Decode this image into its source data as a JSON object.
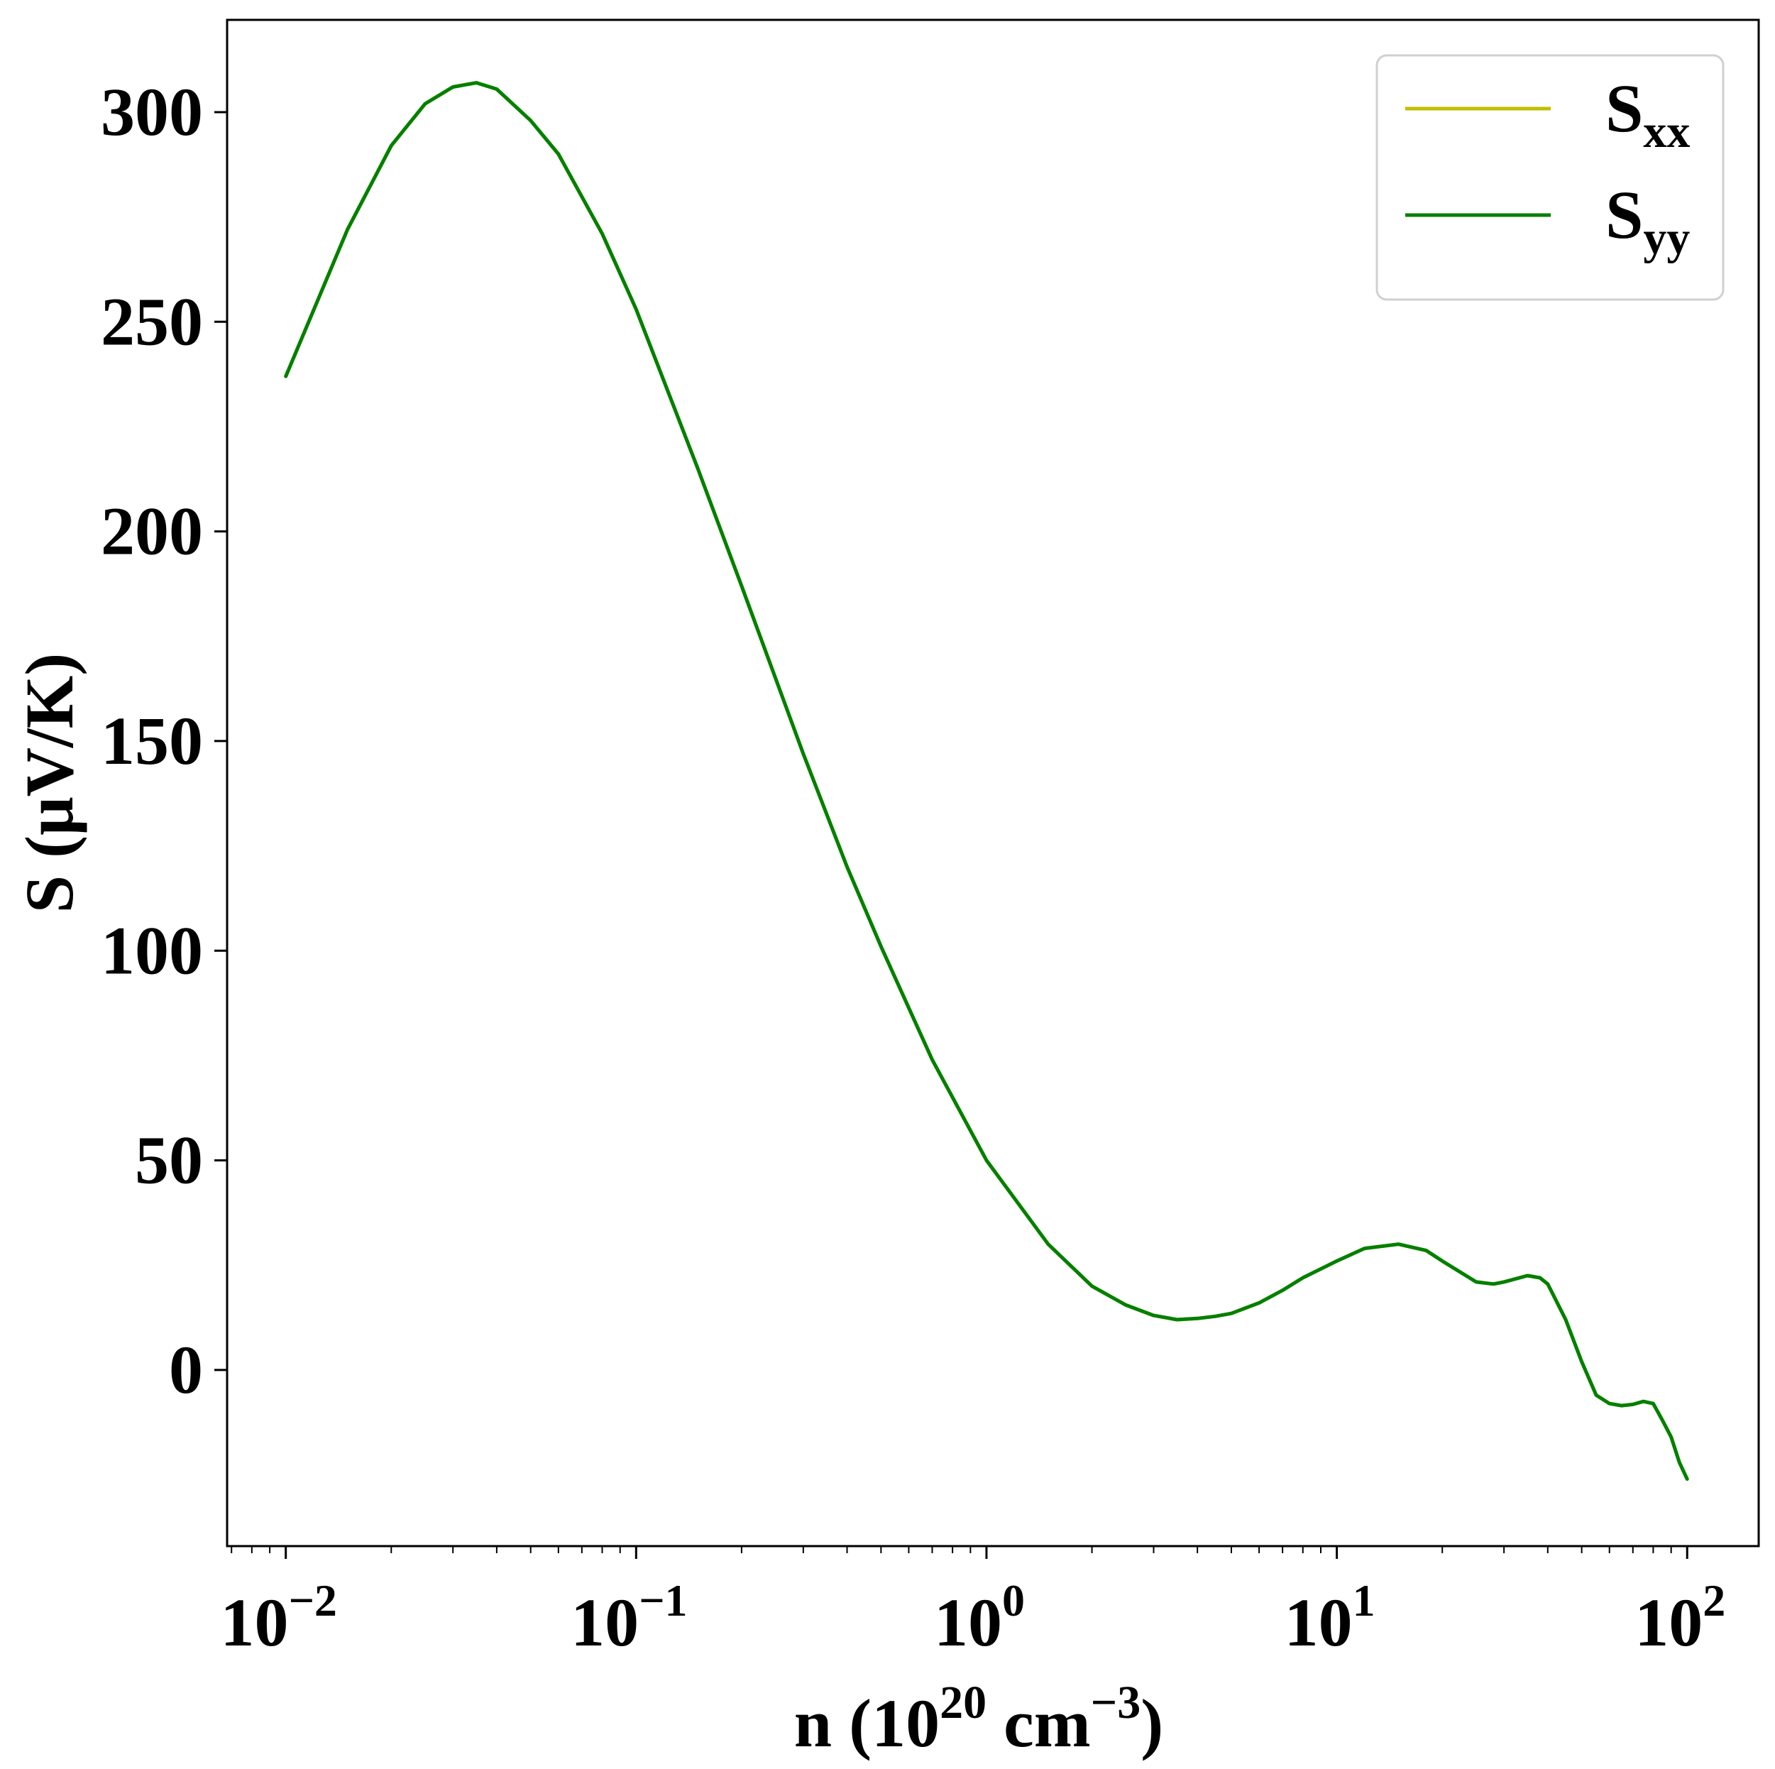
{
  "chart_data": {
    "type": "line",
    "x_scale": "log",
    "xlim": [
      0.0068,
      160
    ],
    "ylim": [
      -42,
      322
    ],
    "grid": false,
    "legend_position": "top-right",
    "xlabel": {
      "base": "n (10",
      "sup1": "20",
      "mid": " cm",
      "sup2": "−3",
      "end": ")"
    },
    "ylabel": "S (μV/K)",
    "x_ticks": [
      {
        "value": 0.01,
        "base": "10",
        "exp": "−2"
      },
      {
        "value": 0.1,
        "base": "10",
        "exp": "−1"
      },
      {
        "value": 1,
        "base": "10",
        "exp": "0"
      },
      {
        "value": 10,
        "base": "10",
        "exp": "1"
      },
      {
        "value": 100,
        "base": "10",
        "exp": "2"
      }
    ],
    "y_ticks": [
      0,
      50,
      100,
      150,
      200,
      250,
      300
    ],
    "y_tick_labels": [
      "0",
      "50",
      "100",
      "150",
      "200",
      "250",
      "300"
    ],
    "series": [
      {
        "name": "S",
        "name_sub": "xx",
        "color": "#bfbf00",
        "x": [
          0.01,
          0.015,
          0.02,
          0.025,
          0.03,
          0.035,
          0.04,
          0.05,
          0.06,
          0.08,
          0.1,
          0.15,
          0.2,
          0.3,
          0.4,
          0.5,
          0.7,
          1.0,
          1.5,
          2.0,
          2.5,
          3.0,
          3.5,
          4.0,
          4.5,
          5,
          6,
          7,
          8,
          10,
          12,
          15,
          18,
          20,
          25,
          28,
          30,
          35,
          38,
          40,
          45,
          50,
          55,
          60,
          65,
          70,
          75,
          80,
          85,
          90,
          95,
          100
        ],
        "y": [
          237,
          272,
          292,
          302,
          306,
          307,
          305.5,
          298,
          290,
          271,
          253,
          215,
          187,
          147,
          120,
          101,
          74,
          50,
          30,
          20,
          15.5,
          13,
          12,
          12.3,
          12.8,
          13.5,
          16,
          19,
          22,
          26,
          29,
          30,
          28.5,
          26,
          21,
          20.5,
          21,
          22.5,
          22,
          20.5,
          12,
          2,
          -6,
          -8,
          -8.5,
          -8.2,
          -7.5,
          -8,
          -12,
          -16,
          -22,
          -26
        ]
      },
      {
        "name": "S",
        "name_sub": "yy",
        "color": "#008000",
        "x": [
          0.01,
          0.015,
          0.02,
          0.025,
          0.03,
          0.035,
          0.04,
          0.05,
          0.06,
          0.08,
          0.1,
          0.15,
          0.2,
          0.3,
          0.4,
          0.5,
          0.7,
          1.0,
          1.5,
          2.0,
          2.5,
          3.0,
          3.5,
          4.0,
          4.5,
          5,
          6,
          7,
          8,
          10,
          12,
          15,
          18,
          20,
          25,
          28,
          30,
          35,
          38,
          40,
          45,
          50,
          55,
          60,
          65,
          70,
          75,
          80,
          85,
          90,
          95,
          100
        ],
        "y": [
          237,
          272,
          292,
          302,
          306,
          307,
          305.5,
          298,
          290,
          271,
          253,
          215,
          187,
          147,
          120,
          101,
          74,
          50,
          30,
          20,
          15.5,
          13,
          12,
          12.3,
          12.8,
          13.5,
          16,
          19,
          22,
          26,
          29,
          30,
          28.5,
          26,
          21,
          20.5,
          21,
          22.5,
          22,
          20.5,
          12,
          2,
          -6,
          -8,
          -8.5,
          -8.2,
          -7.5,
          -8,
          -12,
          -16,
          -22,
          -26
        ]
      }
    ]
  }
}
